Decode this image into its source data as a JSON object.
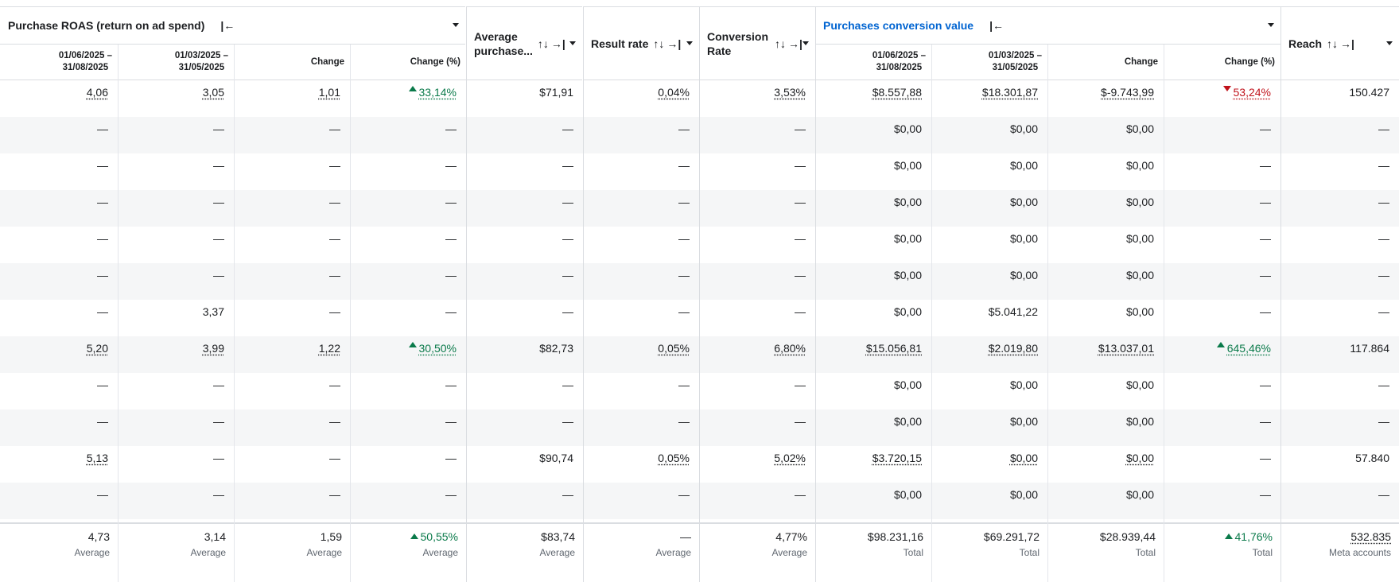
{
  "headers": {
    "roas": {
      "title": "Purchase ROAS (return on ad spend)",
      "collapse_icon": "collapse-left-icon"
    },
    "avg_purchase": {
      "title_line1": "Average",
      "title_line2": "purchase..."
    },
    "result_rate": {
      "title": "Result rate"
    },
    "conversion_rate": {
      "title_line1": "Conversion",
      "title_line2": "Rate"
    },
    "pcv": {
      "title": "Purchases conversion value",
      "color": "#0064d1"
    },
    "reach": {
      "title": "Reach"
    },
    "sort_icon": "↑↓",
    "pin_icon": "→|",
    "collapse_icon": "|←"
  },
  "subheaders": {
    "period_a_line1": "01/06/2025 –",
    "period_a_line2": "31/08/2025",
    "period_b_line1": "01/03/2025 –",
    "period_b_line2": "31/05/2025",
    "change": "Change",
    "change_pct": "Change (%)"
  },
  "rows": [
    {
      "shade": false,
      "c": [
        "4,06",
        "3,05",
        "1,01",
        "33,14%",
        "$71,91",
        "0,04%",
        "3,53%",
        "$8.557,88",
        "$18.301,87",
        "$-9.743,99",
        "53,24%",
        "150.427"
      ],
      "u": [
        1,
        1,
        1,
        1,
        0,
        1,
        1,
        1,
        1,
        1,
        1,
        0
      ],
      "t": [
        "",
        "",
        "",
        "up",
        "",
        "",
        "",
        "",
        "",
        "",
        "down",
        ""
      ]
    },
    {
      "shade": true,
      "c": [
        "—",
        "—",
        "—",
        "—",
        "—",
        "—",
        "—",
        "$0,00",
        "$0,00",
        "$0,00",
        "—",
        "—"
      ]
    },
    {
      "shade": false,
      "c": [
        "—",
        "—",
        "—",
        "—",
        "—",
        "—",
        "—",
        "$0,00",
        "$0,00",
        "$0,00",
        "—",
        "—"
      ]
    },
    {
      "shade": true,
      "c": [
        "—",
        "—",
        "—",
        "—",
        "—",
        "—",
        "—",
        "$0,00",
        "$0,00",
        "$0,00",
        "—",
        "—"
      ]
    },
    {
      "shade": false,
      "c": [
        "—",
        "—",
        "—",
        "—",
        "—",
        "—",
        "—",
        "$0,00",
        "$0,00",
        "$0,00",
        "—",
        "—"
      ]
    },
    {
      "shade": true,
      "c": [
        "—",
        "—",
        "—",
        "—",
        "—",
        "—",
        "—",
        "$0,00",
        "$0,00",
        "$0,00",
        "—",
        "—"
      ]
    },
    {
      "shade": false,
      "c": [
        "—",
        "3,37",
        "—",
        "—",
        "—",
        "—",
        "—",
        "$0,00",
        "$5.041,22",
        "$0,00",
        "—",
        "—"
      ]
    },
    {
      "shade": true,
      "c": [
        "5,20",
        "3,99",
        "1,22",
        "30,50%",
        "$82,73",
        "0,05%",
        "6,80%",
        "$15.056,81",
        "$2.019,80",
        "$13.037,01",
        "645,46%",
        "117.864"
      ],
      "u": [
        1,
        1,
        1,
        1,
        0,
        1,
        1,
        1,
        1,
        1,
        1,
        0
      ],
      "t": [
        "",
        "",
        "",
        "up",
        "",
        "",
        "",
        "",
        "",
        "",
        "up",
        ""
      ]
    },
    {
      "shade": false,
      "c": [
        "—",
        "—",
        "—",
        "—",
        "—",
        "—",
        "—",
        "$0,00",
        "$0,00",
        "$0,00",
        "—",
        "—"
      ]
    },
    {
      "shade": true,
      "c": [
        "—",
        "—",
        "—",
        "—",
        "—",
        "—",
        "—",
        "$0,00",
        "$0,00",
        "$0,00",
        "—",
        "—"
      ]
    },
    {
      "shade": false,
      "c": [
        "5,13",
        "—",
        "—",
        "—",
        "$90,74",
        "0,05%",
        "5,02%",
        "$3.720,15",
        "$0,00",
        "$0,00",
        "—",
        "57.840"
      ],
      "u": [
        1,
        0,
        0,
        0,
        0,
        1,
        1,
        1,
        1,
        1,
        0,
        0
      ]
    },
    {
      "shade": true,
      "c": [
        "—",
        "—",
        "—",
        "—",
        "—",
        "—",
        "—",
        "$0,00",
        "$0,00",
        "$0,00",
        "—",
        "—"
      ]
    }
  ],
  "footer": [
    {
      "v": "4,73",
      "l": "Average"
    },
    {
      "v": "3,14",
      "l": "Average"
    },
    {
      "v": "1,59",
      "l": "Average"
    },
    {
      "v": "50,55%",
      "l": "Average",
      "t": "up"
    },
    {
      "v": "$83,74",
      "l": "Average"
    },
    {
      "v": "—",
      "l": "Average"
    },
    {
      "v": "4,77%",
      "l": "Average"
    },
    {
      "v": "$98.231,16",
      "l": "Total"
    },
    {
      "v": "$69.291,72",
      "l": "Total"
    },
    {
      "v": "$28.939,44",
      "l": "Total"
    },
    {
      "v": "41,76%",
      "l": "Total",
      "t": "up"
    },
    {
      "v": "532.835",
      "l": "Meta accounts",
      "u": true
    }
  ],
  "colors": {
    "positive": "#0a7a4a",
    "negative": "#c0121b",
    "row_shade": "#f5f6f7",
    "link_header": "#0064d1"
  }
}
